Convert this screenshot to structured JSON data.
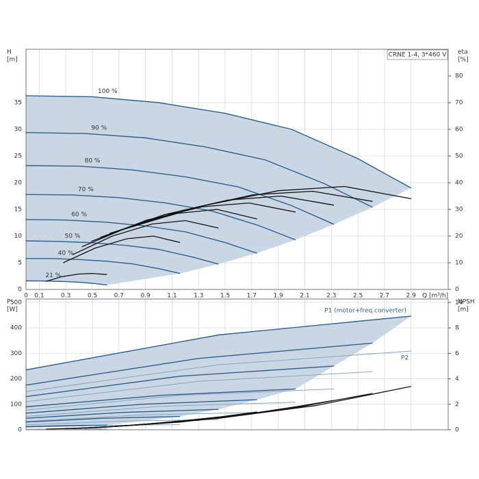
{
  "chart_data": [
    {
      "type": "line",
      "title": "CRNE 1-4, 3*460 V",
      "xlabel": "Q [m³/h]",
      "ylabel": "H",
      "yunit": "[m]",
      "y2label": "eta",
      "y2unit": "[%]",
      "xlim": [
        0,
        3.18
      ],
      "xticks": [
        0,
        0.1,
        0.3,
        0.5,
        0.7,
        0.9,
        1.1,
        1.3,
        1.5,
        1.7,
        1.9,
        2.1,
        2.3,
        2.5,
        2.7,
        2.9
      ],
      "ylim": [
        0,
        45
      ],
      "yticks": [
        0,
        5,
        10,
        15,
        20,
        25,
        30,
        35
      ],
      "y2lim": [
        0,
        90
      ],
      "y2ticks": [
        0,
        10,
        20,
        30,
        40,
        50,
        60,
        70,
        80
      ],
      "grid": true,
      "area_color": "#c9d7e4",
      "series": [
        {
          "name": "100 %",
          "color": "#2d5f8e",
          "x": [
            0,
            0.5,
            1.0,
            1.5,
            2.0,
            2.5,
            2.9
          ],
          "values": [
            36.3,
            36.1,
            35,
            33,
            30,
            24.5,
            19
          ]
        },
        {
          "name": "90 %",
          "color": "#2d5f8e",
          "x": [
            0,
            0.45,
            0.9,
            1.35,
            1.8,
            2.25,
            2.61
          ],
          "values": [
            29.4,
            29.2,
            28.4,
            26.7,
            24.3,
            19.8,
            15.4
          ]
        },
        {
          "name": "80 %",
          "color": "#2d5f8e",
          "x": [
            0,
            0.4,
            0.8,
            1.2,
            1.6,
            2.0,
            2.32
          ],
          "values": [
            23.2,
            23.1,
            22.4,
            21.1,
            19.2,
            15.7,
            12.2
          ]
        },
        {
          "name": "70 %",
          "color": "#2d5f8e",
          "x": [
            0,
            0.35,
            0.7,
            1.05,
            1.4,
            1.75,
            2.03
          ],
          "values": [
            17.8,
            17.7,
            17.2,
            16.2,
            14.7,
            12,
            9.3
          ]
        },
        {
          "name": "60 %",
          "color": "#2d5f8e",
          "x": [
            0,
            0.3,
            0.6,
            0.9,
            1.2,
            1.5,
            1.74
          ],
          "values": [
            13.1,
            13,
            12.6,
            11.9,
            10.8,
            8.8,
            6.8
          ]
        },
        {
          "name": "50 %",
          "color": "#2d5f8e",
          "x": [
            0,
            0.25,
            0.5,
            0.75,
            1.0,
            1.25,
            1.45
          ],
          "values": [
            9.1,
            9,
            8.75,
            8.25,
            7.5,
            6.1,
            4.75
          ]
        },
        {
          "name": "40 %",
          "color": "#2d5f8e",
          "x": [
            0,
            0.2,
            0.4,
            0.6,
            0.8,
            1.0,
            1.16
          ],
          "values": [
            5.8,
            5.8,
            5.6,
            5.3,
            4.8,
            3.9,
            3
          ]
        },
        {
          "name": "21 %",
          "color": "#2d5f8e",
          "x": [
            0,
            0.105,
            0.21,
            0.315,
            0.42,
            0.525,
            0.61
          ],
          "values": [
            1.6,
            1.6,
            1.54,
            1.46,
            1.32,
            1.08,
            0.84
          ]
        }
      ],
      "eta_series": [
        {
          "axis": "y2",
          "color": "#111111",
          "x": [
            0.7,
            1.3,
            1.9,
            2.4,
            2.9
          ],
          "values": [
            22,
            31,
            37,
            38.6,
            34
          ]
        },
        {
          "axis": "y2",
          "color": "#111111",
          "x": [
            0.63,
            1.17,
            1.71,
            2.16,
            2.61
          ],
          "values": [
            21,
            29.5,
            35.5,
            36.8,
            33
          ]
        },
        {
          "axis": "y2",
          "color": "#111111",
          "x": [
            0.56,
            1.04,
            1.52,
            1.92,
            2.32
          ],
          "values": [
            19.5,
            28,
            33.5,
            35,
            31.6
          ]
        },
        {
          "axis": "y2",
          "color": "#111111",
          "x": [
            0.49,
            0.91,
            1.33,
            1.68,
            2.03
          ],
          "values": [
            18,
            26,
            31,
            32.4,
            29
          ]
        },
        {
          "axis": "y2",
          "color": "#111111",
          "x": [
            0.42,
            0.78,
            1.14,
            1.44,
            1.74
          ],
          "values": [
            16,
            23.5,
            28.5,
            30,
            26.4
          ]
        },
        {
          "axis": "y2",
          "color": "#111111",
          "x": [
            0.35,
            0.65,
            0.95,
            1.2,
            1.45
          ],
          "values": [
            13,
            20,
            24.5,
            25.8,
            23
          ]
        },
        {
          "axis": "y2",
          "color": "#111111",
          "x": [
            0.28,
            0.52,
            0.76,
            0.96,
            1.16
          ],
          "values": [
            10,
            15.5,
            19,
            20,
            17.6
          ]
        },
        {
          "axis": "y2",
          "color": "#111111",
          "x": [
            0.15,
            0.27,
            0.4,
            0.5,
            0.61
          ],
          "values": [
            3,
            4.8,
            5.8,
            6,
            5.6
          ]
        }
      ]
    },
    {
      "type": "line",
      "ylabel": "P",
      "yunit": "[W]",
      "y2label": "NPSH",
      "y2unit": "[m]",
      "p1_label": "P1 (motor+freq.converter)",
      "p2_label": "P2",
      "xlim": [
        0,
        3.18
      ],
      "xticks": [
        0,
        0.1,
        0.3,
        0.5,
        0.7,
        0.9,
        1.1,
        1.3,
        1.5,
        1.7,
        1.9,
        2.1,
        2.3,
        2.5,
        2.7,
        2.9
      ],
      "ylim": [
        0,
        513
      ],
      "yticks": [
        0,
        100,
        200,
        300,
        400,
        500
      ],
      "y2lim": [
        0,
        10.27
      ],
      "y2ticks": [
        0,
        2,
        4,
        6,
        8,
        10
      ],
      "grid": true,
      "area_color": "#c9d7e4",
      "series": [
        {
          "color": "#2d5f8e",
          "x": [
            0,
            1.45,
            2.9
          ],
          "values": [
            235,
            372,
            446
          ]
        },
        {
          "color": "#2d5f8e",
          "x": [
            0,
            1.3,
            2.61
          ],
          "values": [
            175,
            280,
            340
          ]
        },
        {
          "color": "#2d5f8e",
          "x": [
            0,
            1.16,
            2.32
          ],
          "values": [
            130,
            210,
            250
          ]
        },
        {
          "color": "#2d5f8e",
          "x": [
            0,
            1.02,
            2.03
          ],
          "values": [
            90,
            135,
            160
          ]
        },
        {
          "color": "#2d5f8e",
          "x": [
            0,
            0.87,
            1.74
          ],
          "values": [
            65,
            100,
            118
          ]
        },
        {
          "color": "#2d5f8e",
          "x": [
            0,
            0.73,
            1.45
          ],
          "values": [
            45,
            68,
            80
          ]
        },
        {
          "color": "#2d5f8e",
          "x": [
            0,
            0.58,
            1.16
          ],
          "values": [
            30,
            45,
            52
          ]
        },
        {
          "color": "#2d5f8e",
          "x": [
            0,
            0.3,
            0.61
          ],
          "values": [
            12,
            16,
            18
          ]
        }
      ],
      "p2_series": [
        {
          "color": "#8aa3bd",
          "x": [
            0,
            1.45,
            2.9
          ],
          "values": [
            150,
            255,
            309
          ]
        },
        {
          "color": "#8aa3bd",
          "x": [
            0,
            1.3,
            2.61
          ],
          "values": [
            110,
            190,
            228
          ]
        },
        {
          "color": "#8aa3bd",
          "x": [
            0,
            1.16,
            2.32
          ],
          "values": [
            77,
            135,
            160
          ]
        },
        {
          "color": "#8aa3bd",
          "x": [
            0,
            1.02,
            2.03
          ],
          "values": [
            52,
            92,
            108
          ]
        },
        {
          "color": "#8aa3bd",
          "x": [
            0,
            0.87,
            1.74
          ],
          "values": [
            33,
            58,
            68
          ]
        },
        {
          "color": "#8aa3bd",
          "x": [
            0,
            0.73,
            1.45
          ],
          "values": [
            19,
            34,
            40
          ]
        },
        {
          "color": "#8aa3bd",
          "x": [
            0,
            0.58,
            1.16
          ],
          "values": [
            10,
            17,
            20
          ]
        },
        {
          "color": "#8aa3bd",
          "x": [
            0,
            0.3,
            0.61
          ],
          "values": [
            2,
            3,
            3
          ]
        }
      ],
      "npsh_series": [
        {
          "axis": "y2",
          "color": "#111111",
          "x": [
            0.73,
            1.45,
            2.18,
            2.9
          ],
          "values": [
            0.3,
            0.9,
            1.9,
            3.4
          ]
        },
        {
          "axis": "y2",
          "color": "#111111",
          "x": [
            0.65,
            1.3,
            1.96,
            2.61
          ],
          "values": [
            0.25,
            0.75,
            1.6,
            2.85
          ]
        },
        {
          "axis": "y2",
          "color": "#111111",
          "x": [
            0.58,
            1.16,
            1.74,
            2.32
          ],
          "values": [
            0.2,
            0.6,
            1.3,
            2.3
          ]
        },
        {
          "axis": "y2",
          "color": "#111111",
          "x": [
            0.51,
            1.02,
            1.52,
            2.03
          ],
          "values": [
            0.15,
            0.5,
            1,
            1.8
          ]
        },
        {
          "axis": "y2",
          "color": "#111111",
          "x": [
            0.44,
            0.87,
            1.31,
            1.74
          ],
          "values": [
            0.12,
            0.4,
            0.8,
            1.4
          ]
        },
        {
          "axis": "y2",
          "color": "#111111",
          "x": [
            0.36,
            0.73,
            1.09,
            1.45
          ],
          "values": [
            0.1,
            0.3,
            0.6,
            1
          ]
        },
        {
          "axis": "y2",
          "color": "#111111",
          "x": [
            0.29,
            0.58,
            0.87,
            1.16
          ],
          "values": [
            0.08,
            0.2,
            0.4,
            0.7
          ]
        },
        {
          "axis": "y2",
          "color": "#111111",
          "x": [
            0.15,
            0.3,
            0.46,
            0.61
          ],
          "values": [
            0.05,
            0.1,
            0.15,
            0.25
          ]
        }
      ]
    }
  ]
}
